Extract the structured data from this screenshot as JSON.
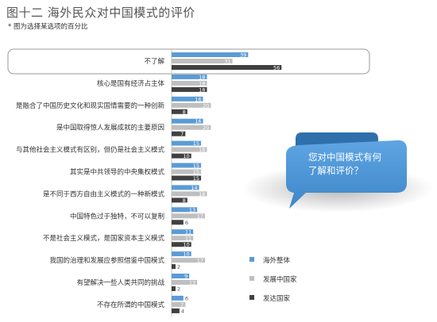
{
  "chart_data": {
    "type": "bar",
    "orientation": "horizontal",
    "title": "图十二  海外民众对中国模式的评价",
    "subtitle": "* 图为选择某选项的百分比",
    "categories": [
      "不了解",
      "核心是国有经济占主体",
      "是融合了中国历史文化和现实国情需要的一种创新",
      "是中国取得惊人发展成就的主要原因",
      "与其他社会主义模式有区别，但仍是社会主义模式",
      "其实是中共领导的中央集权模式",
      "是不同于西方自由主义模式的一种新模式",
      "中国特色过于独特，不可以复制",
      "不是社会主义模式，是国家资本主义模式",
      "我国的治理和发展应参照借鉴中国模式",
      "有望解决一些人类共同的挑战",
      "不存在所谓的中国模式"
    ],
    "series": [
      {
        "name": "海外整体",
        "color": "#5b9bd5",
        "values": [
          39,
          18,
          16,
          16,
          15,
          15,
          14,
          13,
          11,
          10,
          9,
          6
        ]
      },
      {
        "name": "发展中国家",
        "color": "#bfbfbf",
        "values": [
          31,
          18,
          20,
          20,
          18,
          15,
          18,
          17,
          11,
          17,
          13,
          7
        ]
      },
      {
        "name": "发达国家",
        "color": "#404040",
        "values": [
          56,
          18,
          8,
          7,
          10,
          15,
          8,
          6,
          10,
          2,
          2,
          4
        ]
      }
    ],
    "highlight_category": "不了解",
    "legend_position": "bottom-right",
    "grid": false,
    "callout": {
      "lines": [
        "您对中国模式有何",
        "了解和评价？"
      ]
    }
  }
}
